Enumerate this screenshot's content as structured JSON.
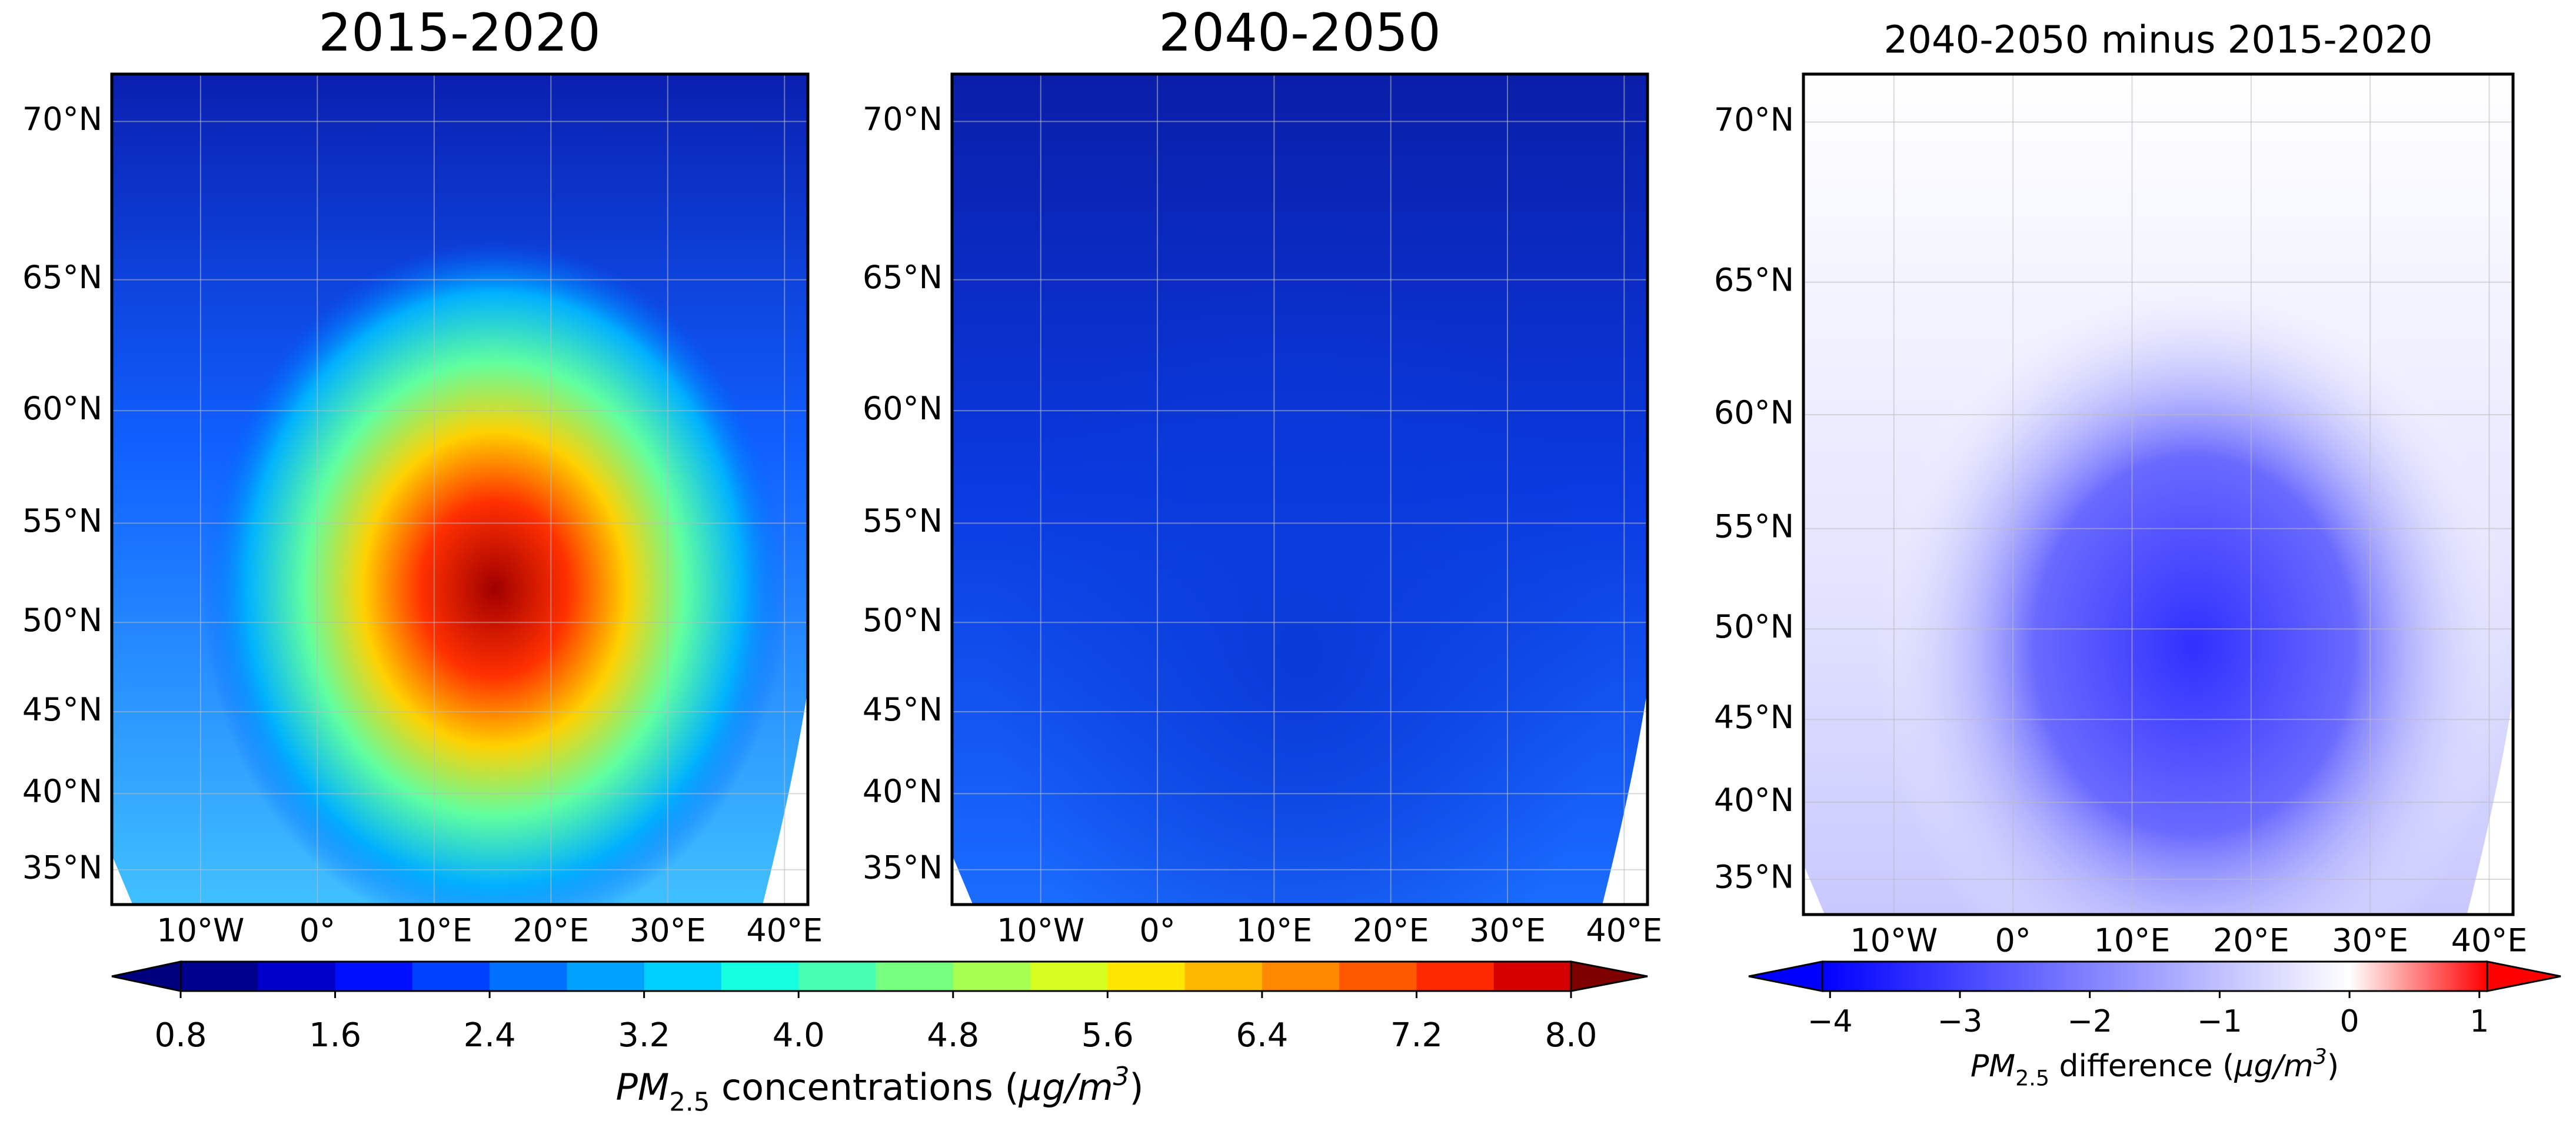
{
  "panels": [
    {
      "title": "2015-2020",
      "xlim": [
        -17.6,
        42.0
      ],
      "ylim": [
        32.6,
        71.3
      ],
      "xticks": [
        {
          "value": -10,
          "label": "10°W"
        },
        {
          "value": 0,
          "label": "0°"
        },
        {
          "value": 10,
          "label": "10°E"
        },
        {
          "value": 20,
          "label": "20°E"
        },
        {
          "value": 30,
          "label": "30°E"
        },
        {
          "value": 40,
          "label": "40°E"
        }
      ],
      "yticks": [
        {
          "value": 35,
          "label": "35°N"
        },
        {
          "value": 40,
          "label": "40°N"
        },
        {
          "value": 45,
          "label": "45°N"
        },
        {
          "value": 50,
          "label": "50°N"
        },
        {
          "value": 55,
          "label": "55°N"
        },
        {
          "value": 60,
          "label": "60°N"
        },
        {
          "value": 65,
          "label": "65°N"
        },
        {
          "value": 70,
          "label": "70°N"
        }
      ]
    },
    {
      "title": "2040-2050",
      "xlim": [
        -17.6,
        42.0
      ],
      "ylim": [
        32.6,
        71.3
      ],
      "xticks": [
        {
          "value": -10,
          "label": "10°W"
        },
        {
          "value": 0,
          "label": "0°"
        },
        {
          "value": 10,
          "label": "10°E"
        },
        {
          "value": 20,
          "label": "20°E"
        },
        {
          "value": 30,
          "label": "30°E"
        },
        {
          "value": 40,
          "label": "40°E"
        }
      ],
      "yticks": [
        {
          "value": 35,
          "label": "35°N"
        },
        {
          "value": 40,
          "label": "40°N"
        },
        {
          "value": 45,
          "label": "45°N"
        },
        {
          "value": 50,
          "label": "50°N"
        },
        {
          "value": 55,
          "label": "55°N"
        },
        {
          "value": 60,
          "label": "60°N"
        },
        {
          "value": 65,
          "label": "65°N"
        },
        {
          "value": 70,
          "label": "70°N"
        }
      ]
    },
    {
      "title": "2040-2050 minus 2015-2020",
      "xlim": [
        -17.6,
        42.0
      ],
      "ylim": [
        32.6,
        71.3
      ],
      "xticks": [
        {
          "value": -10,
          "label": "10°W"
        },
        {
          "value": 0,
          "label": "0°"
        },
        {
          "value": 10,
          "label": "10°E"
        },
        {
          "value": 20,
          "label": "20°E"
        },
        {
          "value": 30,
          "label": "30°E"
        },
        {
          "value": 40,
          "label": "40°E"
        }
      ],
      "yticks": [
        {
          "value": 35,
          "label": "35°N"
        },
        {
          "value": 40,
          "label": "40°N"
        },
        {
          "value": 45,
          "label": "45°N"
        },
        {
          "value": 50,
          "label": "50°N"
        },
        {
          "value": 55,
          "label": "55°N"
        },
        {
          "value": 60,
          "label": "60°N"
        },
        {
          "value": 65,
          "label": "65°N"
        },
        {
          "value": 70,
          "label": "70°N"
        }
      ]
    }
  ],
  "colorbars": [
    {
      "label": {
        "symbol": "PM",
        "subscript": "2.5",
        "text": " concentrations (",
        "unit": "μg/m",
        "superscript": "3",
        "close": ")"
      },
      "clim": [
        0.8,
        8.0
      ],
      "ticks": [
        0.8,
        1.6,
        2.4,
        3.2,
        {
          "value": 4,
          "label": "4.0"
        },
        4.8,
        5.6,
        6.4,
        7.2,
        {
          "value": 8,
          "label": "8.0"
        }
      ],
      "under": "#00007f",
      "over": "#7f0000",
      "colors": [
        "#00008f",
        "#0000c8",
        "#0010ff",
        "#0040ff",
        "#0070ff",
        "#00a0ff",
        "#00d0ff",
        "#16ffe1",
        "#46ffb1",
        "#76ff81",
        "#a6ff51",
        "#d6ff21",
        "#ffe600",
        "#ffb800",
        "#ff8800",
        "#ff5900",
        "#ff2900",
        "#d40000"
      ]
    },
    {
      "label": {
        "symbol": "PM",
        "subscript": "2.5",
        "text": " difference (",
        "unit": "μg/m",
        "superscript": "3",
        "close": ")"
      },
      "clim": [
        -4.06,
        1.06
      ],
      "ticks": [
        {
          "value": -4,
          "label": "−4"
        },
        {
          "value": -3,
          "label": "−3"
        },
        {
          "value": -2,
          "label": "−2"
        },
        {
          "value": -1,
          "label": "−1"
        },
        0,
        1
      ],
      "under": "#0000ff",
      "over": "#ff0000",
      "colors": [
        "#0000ff",
        "#ffffff",
        "#ff0000"
      ]
    }
  ]
}
